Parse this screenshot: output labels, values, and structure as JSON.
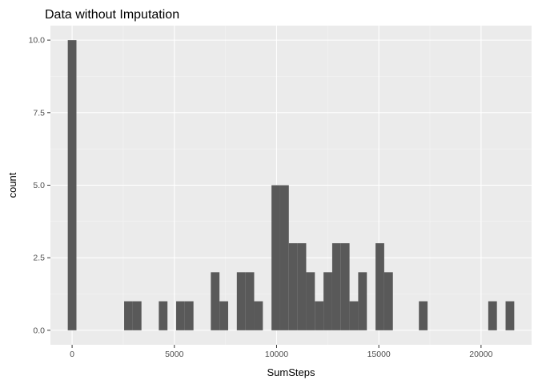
{
  "chart_data": {
    "type": "bar",
    "title": "Data without Imputation",
    "xlabel": "SumSteps",
    "ylabel": "count",
    "bin_width": 424,
    "bins": [
      {
        "x": 0,
        "count": 10
      },
      {
        "x": 2756,
        "count": 1
      },
      {
        "x": 3180,
        "count": 1
      },
      {
        "x": 4452,
        "count": 1
      },
      {
        "x": 5300,
        "count": 1
      },
      {
        "x": 5724,
        "count": 1
      },
      {
        "x": 6996,
        "count": 2
      },
      {
        "x": 7420,
        "count": 1
      },
      {
        "x": 8268,
        "count": 2
      },
      {
        "x": 8692,
        "count": 2
      },
      {
        "x": 9116,
        "count": 1
      },
      {
        "x": 9964,
        "count": 5
      },
      {
        "x": 10388,
        "count": 5
      },
      {
        "x": 10812,
        "count": 3
      },
      {
        "x": 11236,
        "count": 3
      },
      {
        "x": 11660,
        "count": 2
      },
      {
        "x": 12084,
        "count": 1
      },
      {
        "x": 12508,
        "count": 2
      },
      {
        "x": 12932,
        "count": 3
      },
      {
        "x": 13356,
        "count": 3
      },
      {
        "x": 13780,
        "count": 1
      },
      {
        "x": 14204,
        "count": 2
      },
      {
        "x": 15052,
        "count": 3
      },
      {
        "x": 15476,
        "count": 2
      },
      {
        "x": 17172,
        "count": 1
      },
      {
        "x": 20564,
        "count": 1
      },
      {
        "x": 21412,
        "count": 1
      }
    ],
    "x_ticks": [
      {
        "value": 0,
        "label": "0"
      },
      {
        "value": 5000,
        "label": "5000"
      },
      {
        "value": 10000,
        "label": "10000"
      },
      {
        "value": 15000,
        "label": "15000"
      },
      {
        "value": 20000,
        "label": "20000"
      }
    ],
    "y_ticks": [
      {
        "value": 0,
        "label": "0.0"
      },
      {
        "value": 2.5,
        "label": "2.5"
      },
      {
        "value": 5,
        "label": "5.0"
      },
      {
        "value": 7.5,
        "label": "7.5"
      },
      {
        "value": 10,
        "label": "10.0"
      }
    ],
    "xlim": [
      -1060,
      22472
    ],
    "ylim": [
      -0.5,
      10.5
    ],
    "grid": true,
    "colors": {
      "bar": "#595959",
      "panel": "#ebebeb",
      "grid_major": "#ffffff",
      "grid_minor": "#f5f5f5"
    }
  }
}
